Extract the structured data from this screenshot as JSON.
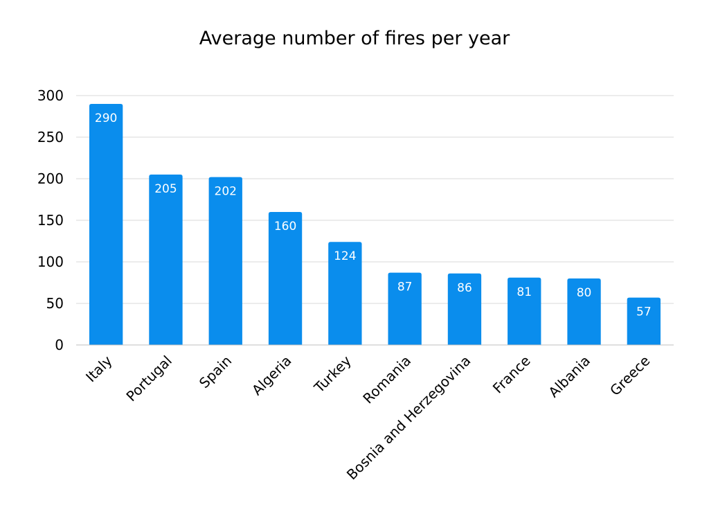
{
  "chart_data": {
    "type": "bar",
    "title": "Average number of fires per year",
    "xlabel": "",
    "ylabel": "",
    "categories": [
      "Italy",
      "Portugal",
      "Spain",
      "Algeria",
      "Turkey",
      "Romania",
      "Bosnia and Herzegovina",
      "France",
      "Albania",
      "Greece"
    ],
    "values": [
      290,
      205,
      202,
      160,
      124,
      87,
      86,
      81,
      80,
      57
    ],
    "ylim": [
      0,
      300
    ],
    "yticks": [
      "0",
      "50",
      "100",
      "150",
      "200",
      "250",
      "300"
    ],
    "grid": true,
    "legend": "none",
    "data_labels": true,
    "colors": {
      "bar": "#0a8ded",
      "grid": "#d9d9d9",
      "axis": "#bfbfbf"
    }
  }
}
